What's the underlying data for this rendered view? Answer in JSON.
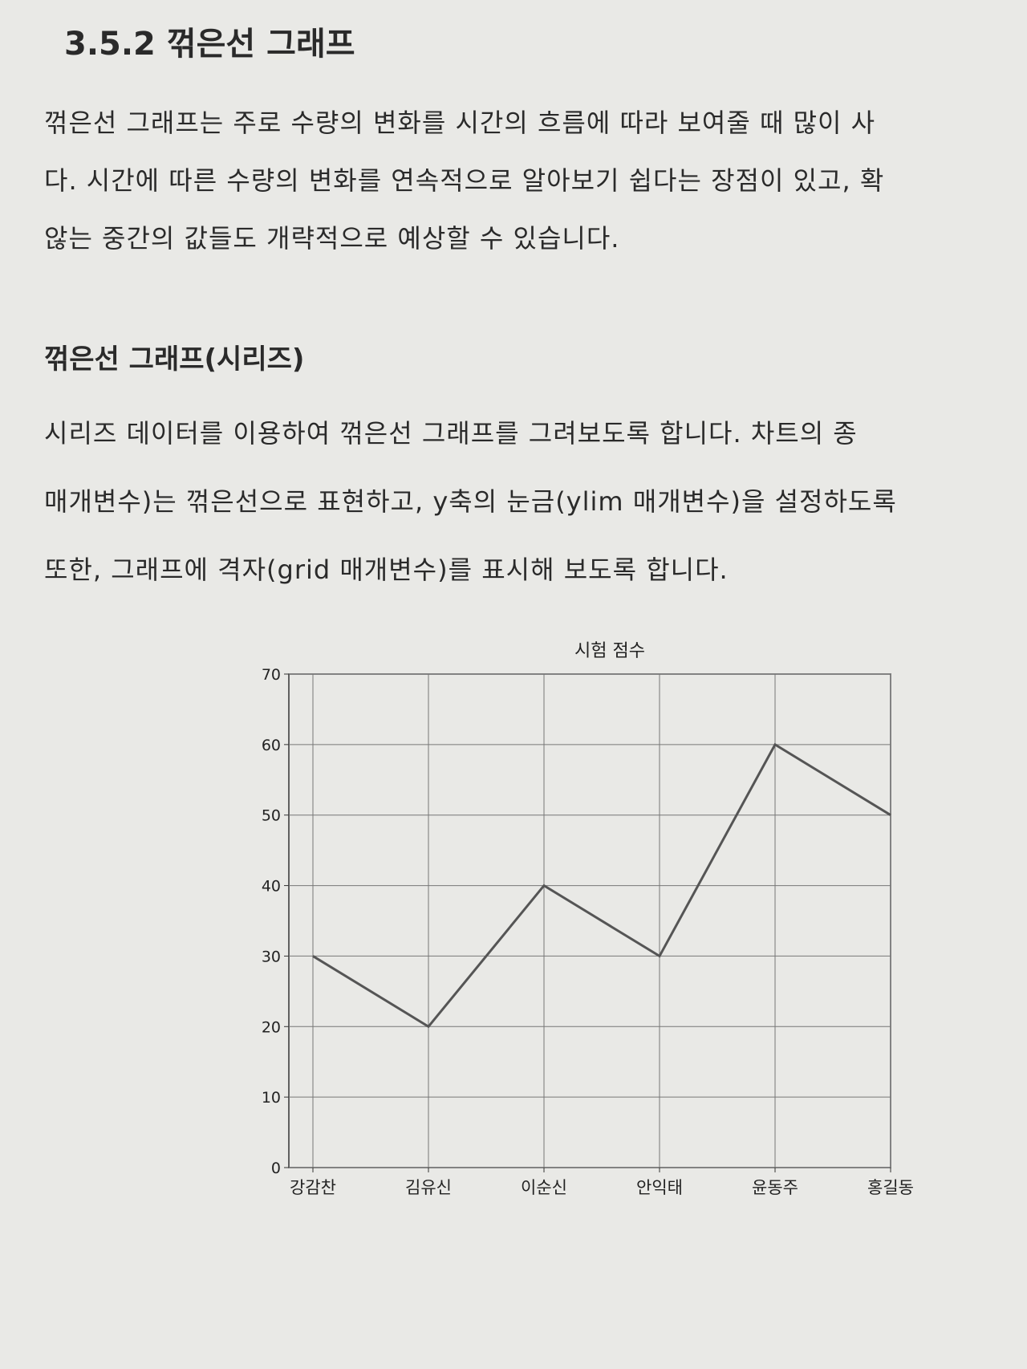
{
  "heading": "3.5.2 꺾은선 그래프",
  "intro_lines": [
    "꺾은선 그래프는 주로 수량의 변화를 시간의 흐름에 따라 보여줄 때 많이 사",
    "다. 시간에 따른 수량의 변화를 연속적으로 알아보기 쉽다는 장점이 있고, 확",
    "않는 중간의 값들도 개략적으로 예상할 수 있습니다."
  ],
  "subheading": "꺾은선 그래프(시리즈)",
  "body_lines": [
    "시리즈 데이터를 이용하여 꺾은선 그래프를 그려보도록 합니다. 차트의 종",
    "매개변수)는 꺾은선으로 표현하고, y축의 눈금(ylim 매개변수)을 설정하도록",
    "또한, 그래프에 격자(grid 매개변수)를 표시해 보도록 합니다."
  ],
  "chart_data": {
    "type": "line",
    "title": "시험 점수",
    "categories": [
      "강감찬",
      "김유신",
      "이순신",
      "안익태",
      "윤동주",
      "홍길동"
    ],
    "values": [
      30,
      20,
      40,
      30,
      60,
      50
    ],
    "color": "#555555",
    "ylim": [
      0,
      70
    ],
    "yticks": [
      0,
      10,
      20,
      30,
      40,
      50,
      60,
      70
    ],
    "grid": true
  }
}
